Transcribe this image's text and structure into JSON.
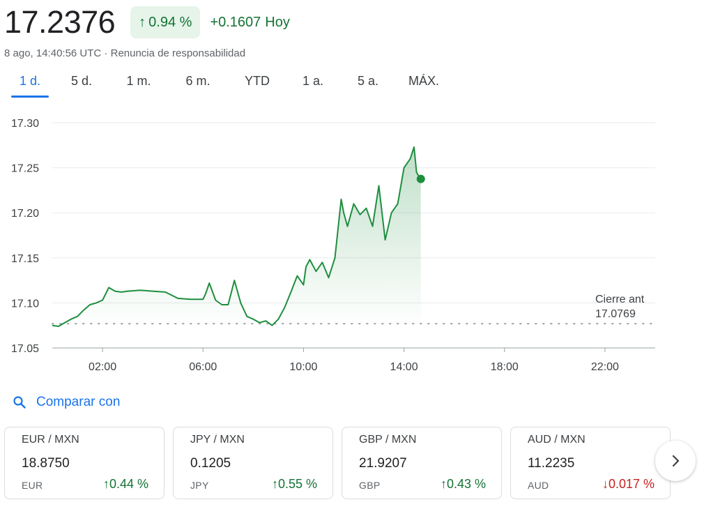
{
  "quote": {
    "price": "17.2376",
    "pct_change": "0.94 %",
    "abs_change": "+0.1607",
    "period_label": "Hoy",
    "timestamp": "8 ago, 14:40:56 UTC",
    "separator": " · ",
    "disclaimer": "Renuncia de responsabilidad",
    "up_color": "#137333",
    "badge_bg": "#e6f4ea"
  },
  "tabs": [
    {
      "label": "1 d.",
      "active": true
    },
    {
      "label": "5 d.",
      "active": false
    },
    {
      "label": "1 m.",
      "active": false
    },
    {
      "label": "6 m.",
      "active": false
    },
    {
      "label": "YTD",
      "active": false
    },
    {
      "label": "1 a.",
      "active": false
    },
    {
      "label": "5 a.",
      "active": false
    },
    {
      "label": "MÁX.",
      "active": false
    }
  ],
  "chart_data": {
    "type": "line",
    "title": "",
    "xlabel": "",
    "ylabel": "",
    "xlim": [
      0,
      24
    ],
    "ylim": [
      17.05,
      17.3
    ],
    "x_ticks": [
      {
        "hour": 2,
        "label": "02:00"
      },
      {
        "hour": 6,
        "label": "06:00"
      },
      {
        "hour": 10,
        "label": "10:00"
      },
      {
        "hour": 14,
        "label": "14:00"
      },
      {
        "hour": 18,
        "label": "18:00"
      },
      {
        "hour": 22,
        "label": "22:00"
      }
    ],
    "y_ticks": [
      {
        "value": 17.3,
        "label": "17.30"
      },
      {
        "value": 17.25,
        "label": "17.25"
      },
      {
        "value": 17.2,
        "label": "17.20"
      },
      {
        "value": 17.15,
        "label": "17.15"
      },
      {
        "value": 17.1,
        "label": "17.10"
      },
      {
        "value": 17.05,
        "label": "17.05"
      }
    ],
    "grid": true,
    "line_color": "#1e8e3e",
    "reference": {
      "label": "Cierre ant",
      "value_label": "17.0769",
      "value": 17.0769
    },
    "series": [
      {
        "x": [
          0.0,
          0.25,
          0.5,
          0.75,
          1.0,
          1.25,
          1.5,
          1.75,
          2.0,
          2.25,
          2.5,
          2.75,
          3.0,
          3.5,
          4.0,
          4.5,
          5.0,
          5.5,
          6.0,
          6.1,
          6.25,
          6.5,
          6.75,
          7.0,
          7.25,
          7.5,
          7.75,
          8.0,
          8.25,
          8.5,
          8.75,
          9.0,
          9.25,
          9.5,
          9.75,
          10.0,
          10.1,
          10.25,
          10.5,
          10.75,
          11.0,
          11.25,
          11.5,
          11.6,
          11.75,
          12.0,
          12.25,
          12.5,
          12.75,
          13.0,
          13.25,
          13.5,
          13.75,
          14.0,
          14.25,
          14.4,
          14.5,
          14.6,
          14.67
        ],
        "y": [
          17.075,
          17.074,
          17.078,
          17.082,
          17.085,
          17.092,
          17.098,
          17.1,
          17.103,
          17.117,
          17.113,
          17.112,
          17.113,
          17.114,
          17.113,
          17.112,
          17.105,
          17.104,
          17.104,
          17.11,
          17.122,
          17.103,
          17.098,
          17.098,
          17.125,
          17.1,
          17.085,
          17.082,
          17.078,
          17.08,
          17.075,
          17.082,
          17.095,
          17.112,
          17.13,
          17.12,
          17.14,
          17.148,
          17.135,
          17.145,
          17.128,
          17.15,
          17.215,
          17.2,
          17.185,
          17.21,
          17.198,
          17.205,
          17.185,
          17.23,
          17.17,
          17.2,
          17.21,
          17.25,
          17.26,
          17.273,
          17.245,
          17.24,
          17.237
        ]
      }
    ],
    "last_point": {
      "x": 14.67,
      "y": 17.2376
    }
  },
  "compare": {
    "label": "Comparar con",
    "icon": "search-icon"
  },
  "cards": [
    {
      "pair": "EUR / MXN",
      "value": "18.8750",
      "currency": "EUR",
      "direction": "up",
      "arrow": "↑",
      "change": "0.44 %"
    },
    {
      "pair": "JPY / MXN",
      "value": "0.1205",
      "currency": "JPY",
      "direction": "up",
      "arrow": "↑",
      "change": "0.55 %"
    },
    {
      "pair": "GBP / MXN",
      "value": "21.9207",
      "currency": "GBP",
      "direction": "up",
      "arrow": "↑",
      "change": "0.43 %"
    },
    {
      "pair": "AUD / MXN",
      "value": "11.2235",
      "currency": "AUD",
      "direction": "down",
      "arrow": "↓",
      "change": "0.017 %"
    }
  ],
  "next_button": {
    "icon": "chevron-right-icon"
  }
}
